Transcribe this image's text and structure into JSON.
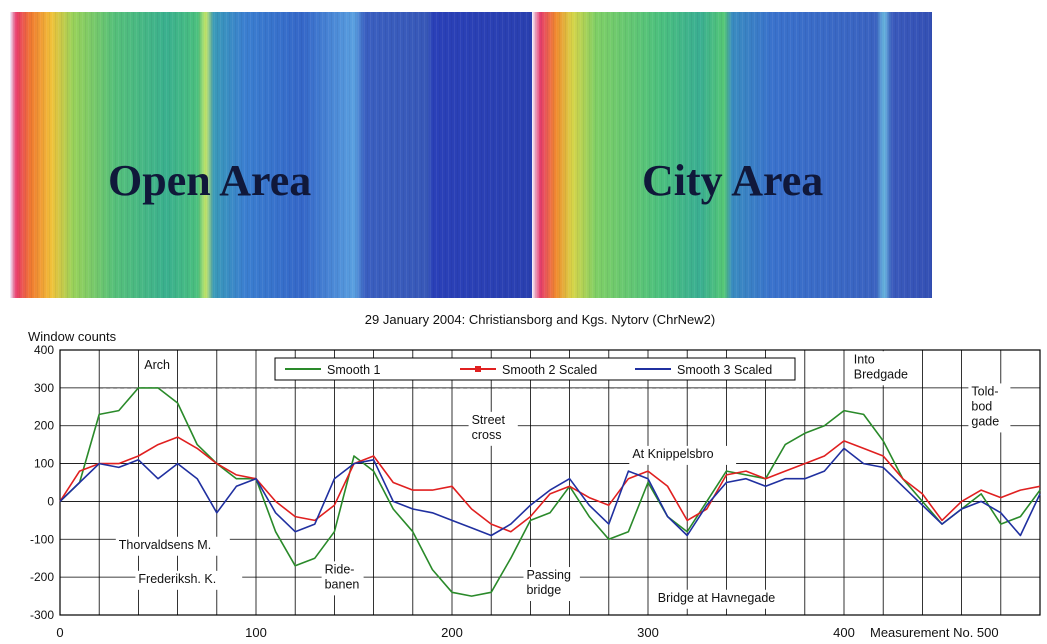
{
  "panels": {
    "open": {
      "label": "Open Area"
    },
    "city": {
      "label": "City Area"
    }
  },
  "chart_data": {
    "type": "line",
    "title": "29 January 2004: Christiansborg and Kgs. Nytorv (ChrNew2)",
    "ylabel": "Window counts",
    "xlabel": "Measurement No. 500",
    "xlim": [
      0,
      500
    ],
    "ylim": [
      -300,
      400
    ],
    "x_ticks": [
      "0",
      "100",
      "200",
      "300",
      "400"
    ],
    "y_ticks": [
      "400",
      "300",
      "200",
      "100",
      "0",
      "-100",
      "-200",
      "-300"
    ],
    "grid": true,
    "legend_position": "top-center",
    "series": [
      {
        "name": "Smooth 1",
        "color": "#2a8a2a",
        "x": [
          0,
          10,
          20,
          30,
          40,
          50,
          60,
          70,
          80,
          90,
          100,
          110,
          120,
          130,
          140,
          150,
          160,
          170,
          180,
          190,
          200,
          210,
          220,
          230,
          240,
          250,
          260,
          270,
          280,
          290,
          300,
          310,
          320,
          330,
          340,
          350,
          360,
          370,
          380,
          390,
          400,
          410,
          420,
          430,
          440,
          450,
          460,
          470,
          480,
          490,
          500
        ],
        "y": [
          0,
          50,
          230,
          240,
          300,
          300,
          260,
          150,
          100,
          60,
          60,
          -80,
          -170,
          -150,
          -80,
          120,
          80,
          -20,
          -80,
          -180,
          -240,
          -250,
          -240,
          -150,
          -50,
          -30,
          40,
          -40,
          -100,
          -80,
          50,
          -40,
          -80,
          0,
          80,
          70,
          60,
          150,
          180,
          200,
          240,
          230,
          160,
          60,
          0,
          -60,
          -20,
          20,
          -60,
          -40,
          30
        ]
      },
      {
        "name": "Smooth 2 Scaled",
        "color": "#e02020",
        "x": [
          0,
          10,
          20,
          30,
          40,
          50,
          60,
          70,
          80,
          90,
          100,
          110,
          120,
          130,
          140,
          150,
          160,
          170,
          180,
          190,
          200,
          210,
          220,
          230,
          240,
          250,
          260,
          270,
          280,
          290,
          300,
          310,
          320,
          330,
          340,
          350,
          360,
          370,
          380,
          390,
          400,
          410,
          420,
          430,
          440,
          450,
          460,
          470,
          480,
          490,
          500
        ],
        "y": [
          0,
          80,
          100,
          100,
          120,
          150,
          170,
          140,
          100,
          70,
          60,
          0,
          -40,
          -50,
          -10,
          100,
          120,
          50,
          30,
          30,
          40,
          -20,
          -60,
          -80,
          -40,
          20,
          40,
          10,
          -10,
          60,
          80,
          40,
          -50,
          -20,
          70,
          80,
          60,
          80,
          100,
          120,
          160,
          140,
          120,
          60,
          20,
          -50,
          0,
          30,
          10,
          30,
          40
        ]
      },
      {
        "name": "Smooth 3 Scaled",
        "color": "#2030a0",
        "x": [
          0,
          10,
          20,
          30,
          40,
          50,
          60,
          70,
          80,
          90,
          100,
          110,
          120,
          130,
          140,
          150,
          160,
          170,
          180,
          190,
          200,
          210,
          220,
          230,
          240,
          250,
          260,
          270,
          280,
          290,
          300,
          310,
          320,
          330,
          340,
          350,
          360,
          370,
          380,
          390,
          400,
          410,
          420,
          430,
          440,
          450,
          460,
          470,
          480,
          490,
          500
        ],
        "y": [
          0,
          50,
          100,
          90,
          110,
          60,
          100,
          60,
          -30,
          40,
          60,
          -30,
          -80,
          -60,
          60,
          100,
          110,
          0,
          -20,
          -30,
          -50,
          -70,
          -90,
          -60,
          -10,
          30,
          60,
          -10,
          -60,
          80,
          60,
          -40,
          -90,
          -10,
          50,
          60,
          40,
          60,
          60,
          80,
          140,
          100,
          90,
          40,
          -10,
          -60,
          -20,
          0,
          -30,
          -90,
          20
        ]
      }
    ],
    "annotations": [
      {
        "lines": [
          "Arch"
        ],
        "x": 43,
        "y": 350
      },
      {
        "lines": [
          "Street",
          "cross"
        ],
        "x": 210,
        "y": 205
      },
      {
        "lines": [
          "At Knippelsbro"
        ],
        "x": 292,
        "y": 115
      },
      {
        "lines": [
          "Into",
          "Bredgade"
        ],
        "x": 405,
        "y": 365
      },
      {
        "lines": [
          "Told-",
          "bod",
          "gade"
        ],
        "x": 465,
        "y": 280
      },
      {
        "lines": [
          "Thorvaldsens M."
        ],
        "x": 30,
        "y": -125
      },
      {
        "lines": [
          "Frederiksh. K."
        ],
        "x": 40,
        "y": -215
      },
      {
        "lines": [
          "Ride-",
          "banen"
        ],
        "x": 135,
        "y": -190
      },
      {
        "lines": [
          "Passing",
          "bridge"
        ],
        "x": 238,
        "y": -205
      },
      {
        "lines": [
          "Bridge at Havnegade"
        ],
        "x": 305,
        "y": -265
      }
    ]
  }
}
